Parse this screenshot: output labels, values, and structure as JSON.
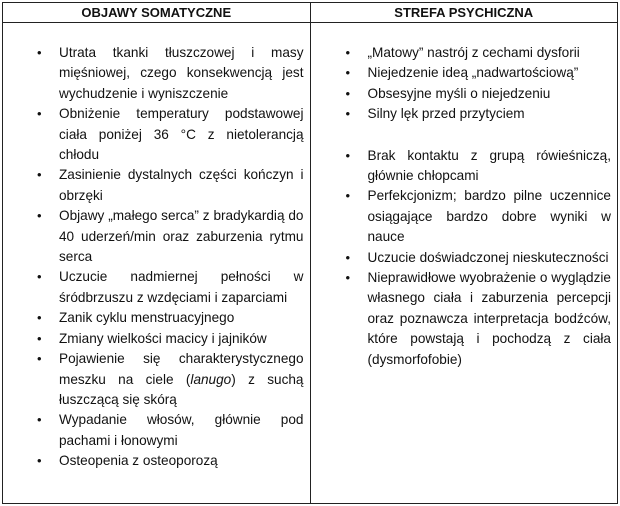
{
  "table": {
    "headers": [
      "OBJAWY SOMATYCZNE",
      "STREFA PSYCHICZNA"
    ],
    "somatic": [
      {
        "text": "Utrata tkanki tłuszczowej i masy mięśniowej, czego konsekwencją jest wychudzenie i wyniszczenie"
      },
      {
        "text": "Obniżenie temperatury podstawowej ciała poniżej 36 °C z nietolerancją chłodu"
      },
      {
        "text": "Zasinienie dystalnych części kończyn i obrzęki"
      },
      {
        "text": "Objawy „małego serca” z bradykardią do 40 uderzeń/min oraz zaburzenia rytmu serca"
      },
      {
        "text": "Uczucie nadmiernej pełności w śródbrzuszu z wzdęciami i zaparciami"
      },
      {
        "text": "Zanik cyklu menstruacyjnego"
      },
      {
        "text": "Zmiany wielkości macicy i jajników"
      },
      {
        "text_before": "Pojawienie się charakterystycznego meszku na ciele (",
        "italic": "lanugo",
        "text_after": ") z suchą łuszczącą się skórą"
      },
      {
        "text": "Wypadanie włosów, głównie pod pachami i łonowymi"
      },
      {
        "text": "Osteopenia z osteoporozą"
      }
    ],
    "psychic_group1": [
      {
        "text": "„Matowy” nastrój z cechami dysforii"
      },
      {
        "text": "Niejedzenie ideą „nadwartościową”"
      },
      {
        "text": "Obsesyjne myśli o niejedzeniu"
      },
      {
        "text": "Silny lęk przed przytyciem"
      }
    ],
    "psychic_group2": [
      {
        "text": "Brak kontaktu z grupą rówieśniczą, głównie chłopcami"
      },
      {
        "text": "Perfekcjonizm; bardzo pilne uczennice osiągające bardzo dobre wyniki w nauce"
      },
      {
        "text": "Uczucie doświadczonej nieskuteczności"
      },
      {
        "text": "Nieprawidłowe wyobrażenie o wyglądzie własnego ciała i zaburzenia percepcji oraz poznawcza interpretacja bodźców, które powstają i pochodzą z ciała (dysmorfofobie)"
      }
    ],
    "bullet_glyph": "•"
  }
}
